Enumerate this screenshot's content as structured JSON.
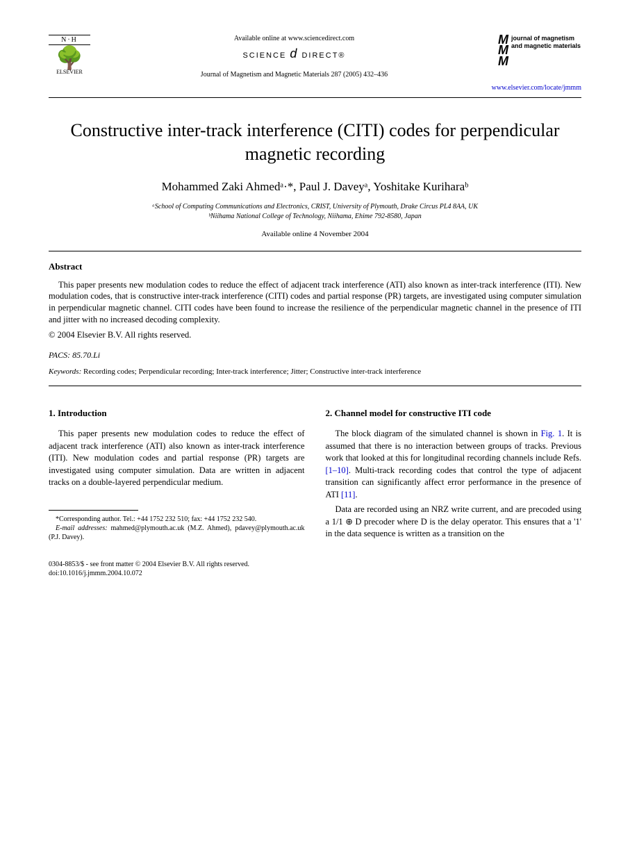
{
  "header": {
    "publisher_initials": "N·H",
    "publisher_name": "ELSEVIER",
    "available_text": "Available online at www.sciencedirect.com",
    "sd_brand_left": "SCIENCE",
    "sd_brand_right": "DIRECT®",
    "journal_ref": "Journal of Magnetism and Magnetic Materials 287 (2005) 432–436",
    "journal_logo_text": "journal of magnetism and magnetic materials",
    "url": "www.elsevier.com/locate/jmmm"
  },
  "title": "Constructive inter-track interference (CITI) codes for perpendicular magnetic recording",
  "authors_html": "Mohammed Zaki Ahmedᵃ·*, Paul J. Daveyᵃ, Yoshitake Kuriharaᵇ",
  "affiliations": {
    "a": "ᵃSchool of Computing Communications and Electronics, CRIST, University of Plymouth, Drake Circus PL4 8AA, UK",
    "b": "ᵇNiihama National College of Technology, Niihama, Ehime 792-8580, Japan"
  },
  "available_online": "Available online 4 November 2004",
  "abstract": {
    "heading": "Abstract",
    "text": "This paper presents new modulation codes to reduce the effect of adjacent track interference (ATI) also known as inter-track interference (ITI). New modulation codes, that is constructive inter-track interference (CITI) codes and partial response (PR) targets, are investigated using computer simulation in perpendicular magnetic channel. CITI codes have been found to increase the resilience of the perpendicular magnetic channel in the presence of ITI and jitter with no increased decoding complexity.",
    "copyright": "© 2004 Elsevier B.V. All rights reserved.",
    "pacs": "PACS: 85.70.Li",
    "keywords_label": "Keywords:",
    "keywords": " Recording codes; Perpendicular recording; Inter-track interference; Jitter; Constructive inter-track interference"
  },
  "sections": {
    "intro": {
      "heading": "1. Introduction",
      "text": "This paper presents new modulation codes to reduce the effect of adjacent track interference (ATI) also known as inter-track interference (ITI). New modulation codes and partial response (PR) targets are investigated using computer simulation. Data are written in adjacent tracks on a double-layered perpendicular medium."
    },
    "channel": {
      "heading": "2. Channel model for constructive ITI code",
      "p1_a": "The block diagram of the simulated channel is shown in ",
      "p1_fig": "Fig. 1",
      "p1_b": ". It is assumed that there is no interaction between groups of tracks. Previous work that looked at this for longitudinal recording channels include Refs. ",
      "p1_refs": "[1–10]",
      "p1_c": ". Multi-track recording codes that control the type of adjacent transition can significantly affect error performance in the presence of ATI ",
      "p1_ref2": "[11]",
      "p1_d": ".",
      "p2": "Data are recorded using an NRZ write current, and are precoded using a 1/1 ⊕ D precoder where D is the delay operator. This ensures that a '1' in the data sequence is written as a transition on the"
    }
  },
  "footnote": {
    "corresponding": "*Corresponding author. Tel.: +44 1752 232 510; fax: +44 1752 232 540.",
    "email_label": "E-mail addresses:",
    "email_text": " mahmed@plymouth.ac.uk (M.Z. Ahmed), pdavey@plymouth.ac.uk (P.J. Davey)."
  },
  "footer": {
    "issn": "0304-8853/$ - see front matter © 2004 Elsevier B.V. All rights reserved.",
    "doi": "doi:10.1016/j.jmmm.2004.10.072"
  }
}
